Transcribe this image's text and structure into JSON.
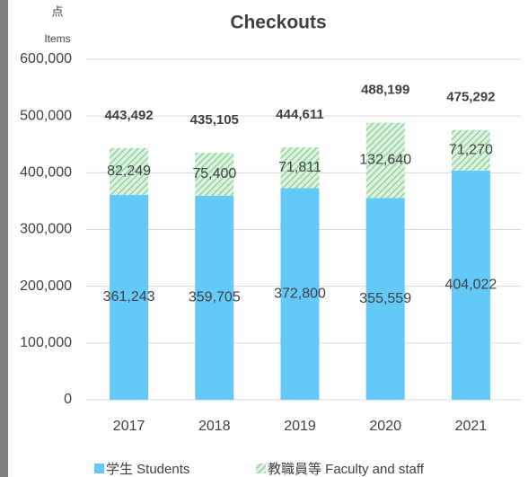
{
  "chart_data": {
    "type": "bar",
    "stacked": true,
    "title": "Checkouts",
    "y_unit_label": "点",
    "y_axis_label": "Items",
    "categories": [
      "2017",
      "2018",
      "2019",
      "2020",
      "2021"
    ],
    "series": [
      {
        "name": "学生 Students",
        "color": "#62c9f8",
        "values": [
          361243,
          359705,
          372800,
          355559,
          404022
        ],
        "value_labels": [
          "361,243",
          "359,705",
          "372,800",
          "355,559",
          "404,022"
        ]
      },
      {
        "name": "教職員等 Faculty and staff",
        "color": "#9bdca8",
        "pattern": "hatch",
        "values": [
          82249,
          75400,
          71811,
          132640,
          71270
        ],
        "value_labels": [
          "82,249",
          "75,400",
          "71,811",
          "132,640",
          "71,270"
        ]
      }
    ],
    "totals": [
      443492,
      435105,
      444611,
      488199,
      475292
    ],
    "total_labels": [
      "443,492",
      "435,105",
      "444,611",
      "488,199",
      "475,292"
    ],
    "ylim": [
      0,
      600000
    ],
    "yticks": [
      0,
      {
        "value": 100000,
        "label": "100,000"
      },
      {
        "value": 200000,
        "label": "200,000"
      },
      {
        "value": 300000,
        "label": "300,000"
      },
      {
        "value": 400000,
        "label": "400,000"
      },
      {
        "value": 500000,
        "label": "500,000"
      },
      {
        "value": 600000,
        "label": "600,000"
      }
    ],
    "grid": true
  }
}
